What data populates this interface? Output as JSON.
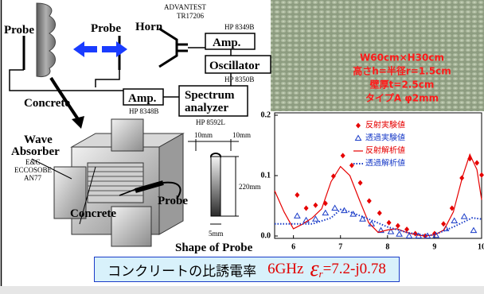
{
  "diagram": {
    "probe_left": "Probe",
    "probe_right": "Probe",
    "horn": "Horn",
    "horn_maker": "ADVANTEST",
    "horn_model": "TR17206",
    "amp_top": "Amp.",
    "amp_top_model": "HP 8349B",
    "oscillator": "Oscillator",
    "oscillator_model": "HP 8350B",
    "amp_bottom": "Amp.",
    "amp_bottom_model": "HP 8348B",
    "analyzer_line1": "Spectrum",
    "analyzer_line2": "analyzer",
    "analyzer_model": "HP 8592L",
    "concrete_top": "Concrete",
    "absorber_line1": "Wave",
    "absorber_line2": "Absorber",
    "absorber_maker": "E&C",
    "absorber_brand": "ECCOSOBE",
    "absorber_model": "AN77",
    "probe_bottom": "Probe",
    "concrete_bottom": "Concrete",
    "probe_shape": "Shape of Probe",
    "dim_left": "10mm",
    "dim_right": "10mm",
    "dim_length": "220mm",
    "dim_tip": "5mm"
  },
  "photo": {
    "lines": [
      "W60cm×H30cm",
      "高さh=半径r=1.5cm",
      "壁厚t=2.5cm",
      "タイプA φ2mm"
    ]
  },
  "caption": {
    "label": "コンクリートの比誘電率",
    "frequency": "6GHz",
    "symbol": "ε",
    "subscript": "r",
    "value": "=7.2-j0.78"
  },
  "chart_data": {
    "type": "line",
    "xlim": [
      5.6,
      10.0
    ],
    "ylim": [
      0,
      0.2
    ],
    "xticks": [
      6,
      7,
      8,
      9,
      10
    ],
    "yticks": [
      {
        "value": 0,
        "label": "0.0"
      },
      0.1,
      0.2
    ],
    "series": [
      {
        "name": "反射実験値",
        "color": "#e60000",
        "mode": "markers",
        "marker": "diamond",
        "x": [
          6.08,
          6.27,
          6.47,
          6.68,
          6.85,
          7.05,
          7.24,
          7.42,
          7.61,
          7.83,
          8.03,
          8.22,
          8.41,
          8.59,
          8.8,
          9.0,
          9.19,
          9.37,
          9.58,
          9.75,
          9.9,
          10.0
        ],
        "values": [
          0.068,
          0.046,
          0.051,
          0.054,
          0.099,
          0.133,
          0.117,
          0.088,
          0.058,
          0.038,
          0.022,
          0.017,
          0.011,
          0.004,
          0.0,
          0.004,
          0.02,
          0.046,
          0.096,
          0.128,
          0.121,
          0.101
        ]
      },
      {
        "name": "透過実験値",
        "color": "#1a3cc8",
        "mode": "markers",
        "marker": "triangle",
        "x": [
          6.08,
          6.27,
          6.47,
          6.68,
          6.88,
          7.08,
          7.27,
          7.47,
          7.66,
          7.86,
          8.07,
          8.25,
          8.46,
          8.66,
          8.85,
          9.03,
          9.24,
          9.42,
          9.63,
          9.83
        ],
        "values": [
          0.033,
          0.026,
          0.028,
          0.038,
          0.046,
          0.042,
          0.036,
          0.028,
          0.02,
          0.009,
          0.007,
          0.003,
          0.0,
          0.0,
          0.0,
          0.001,
          0.012,
          0.025,
          0.032,
          0.009
        ]
      },
      {
        "name": "反射解析値",
        "color": "#e60000",
        "mode": "line",
        "dash": "solid",
        "x": [
          5.6,
          5.8,
          6.0,
          6.2,
          6.4,
          6.6,
          6.8,
          7.0,
          7.2,
          7.4,
          7.6,
          7.8,
          8.0,
          8.2,
          8.4,
          8.6,
          8.8,
          9.0,
          9.2,
          9.4,
          9.6,
          9.75,
          9.9,
          10.0
        ],
        "values": [
          0.075,
          0.04,
          0.012,
          0.02,
          0.03,
          0.045,
          0.09,
          0.115,
          0.1,
          0.06,
          0.022,
          0.006,
          0.01,
          0.012,
          0.006,
          0.002,
          0.0,
          0.002,
          0.01,
          0.04,
          0.1,
          0.135,
          0.11,
          0.06
        ]
      },
      {
        "name": "透過解析値",
        "color": "#1a3cc8",
        "mode": "line",
        "dash": "dotted",
        "x": [
          5.6,
          6.0,
          6.4,
          6.8,
          7.0,
          7.2,
          7.6,
          8.0,
          8.4,
          8.8,
          9.0,
          9.4,
          9.8,
          10.0
        ],
        "values": [
          0.02,
          0.02,
          0.02,
          0.03,
          0.044,
          0.04,
          0.028,
          0.015,
          0.006,
          0.001,
          0.002,
          0.015,
          0.03,
          0.028
        ]
      }
    ]
  }
}
